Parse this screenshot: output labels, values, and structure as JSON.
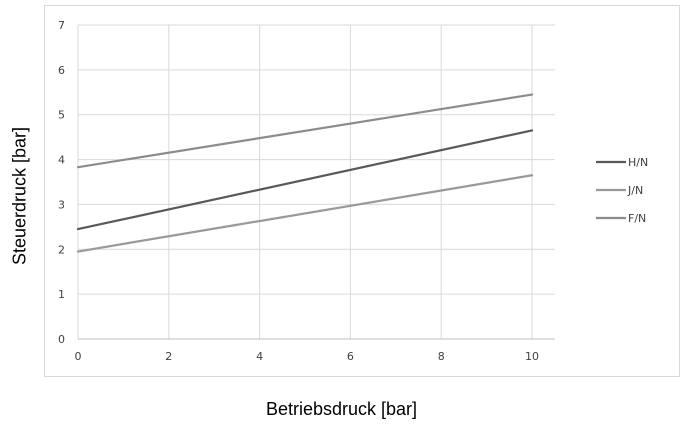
{
  "chart_data": {
    "type": "line",
    "title": "",
    "xlabel": "Betriebsdruck [bar]",
    "ylabel": "Steuerdruck [bar]",
    "xlim": [
      0,
      10
    ],
    "ylim": [
      0,
      7
    ],
    "xticks": [
      "0",
      "2",
      "4",
      "6",
      "8",
      "10"
    ],
    "yticks": [
      "0",
      "1",
      "2",
      "3",
      "4",
      "5",
      "6",
      "7"
    ],
    "grid": true,
    "legend_position": "right",
    "series": [
      {
        "name": "H/N",
        "x": [
          0,
          10
        ],
        "values": [
          2.45,
          4.65
        ],
        "color": "#595959"
      },
      {
        "name": "J/N",
        "x": [
          0,
          10
        ],
        "values": [
          1.95,
          3.65
        ],
        "color": "#999999"
      },
      {
        "name": "F/N",
        "x": [
          0,
          10
        ],
        "values": [
          3.83,
          5.45
        ],
        "color": "#8c8c8c"
      }
    ]
  }
}
